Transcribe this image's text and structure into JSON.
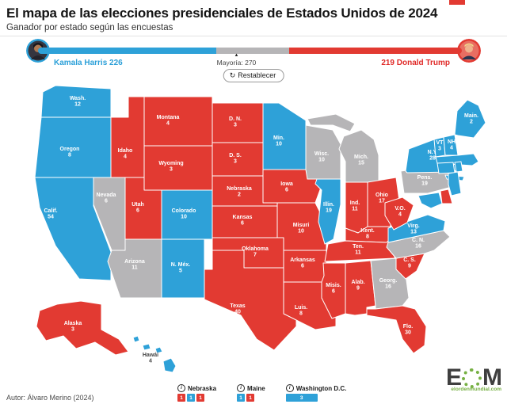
{
  "header": {
    "title": "El mapa de las elecciones presidenciales de Estados Unidos de 2024",
    "subtitle": "Ganador por estado según las encuestas"
  },
  "colors": {
    "dem": "#2ea1d8",
    "rep": "#e23a32",
    "tossup": "#b6b5b7",
    "dem_text": "#2a9fd8",
    "rep_text": "#e02a28",
    "dark_label": "#444444"
  },
  "tally": {
    "total": 538,
    "majority": 270,
    "harris": {
      "name": "Kamala Harris",
      "votes": 226,
      "label": "Kamala Harris 226"
    },
    "trump": {
      "name": "Donald Trump",
      "votes": 219,
      "label": "219 Donald Trump"
    },
    "majority_label": "Mayoría: 270",
    "reset_label": "Restablecer"
  },
  "map": {
    "states": [
      {
        "id": "wa",
        "label": "Wash.",
        "votes": "12",
        "status": "dem"
      },
      {
        "id": "or",
        "label": "Oregon",
        "votes": "8",
        "status": "dem"
      },
      {
        "id": "ca",
        "label": "Calif.",
        "votes": "54",
        "status": "dem"
      },
      {
        "id": "nv",
        "label": "Nevada",
        "votes": "6",
        "status": "tossup"
      },
      {
        "id": "id",
        "label": "Idaho",
        "votes": "4",
        "status": "rep"
      },
      {
        "id": "mt",
        "label": "Montana",
        "votes": "4",
        "status": "rep"
      },
      {
        "id": "wy",
        "label": "Wyoming",
        "votes": "3",
        "status": "rep"
      },
      {
        "id": "ut",
        "label": "Utah",
        "votes": "6",
        "status": "rep"
      },
      {
        "id": "co",
        "label": "Colorado",
        "votes": "10",
        "status": "dem"
      },
      {
        "id": "az",
        "label": "Arizona",
        "votes": "11",
        "status": "tossup"
      },
      {
        "id": "nm",
        "label": "N. Méx.",
        "votes": "5",
        "status": "dem"
      },
      {
        "id": "nd",
        "label": "D. N.",
        "votes": "3",
        "status": "rep"
      },
      {
        "id": "sd",
        "label": "D. S.",
        "votes": "3",
        "status": "rep"
      },
      {
        "id": "ne",
        "label": "Nebraska",
        "votes": "2",
        "status": "rep"
      },
      {
        "id": "ks",
        "label": "Kansas",
        "votes": "6",
        "status": "rep"
      },
      {
        "id": "ok",
        "label": "Oklahoma",
        "votes": "7",
        "status": "rep"
      },
      {
        "id": "tx",
        "label": "Texas",
        "votes": "40",
        "status": "rep"
      },
      {
        "id": "mn",
        "label": "Min.",
        "votes": "10",
        "status": "dem"
      },
      {
        "id": "ia",
        "label": "Iowa",
        "votes": "6",
        "status": "rep"
      },
      {
        "id": "mo",
        "label": "Misuri",
        "votes": "10",
        "status": "rep"
      },
      {
        "id": "ar",
        "label": "Arkansas",
        "votes": "6",
        "status": "rep"
      },
      {
        "id": "la",
        "label": "Luis.",
        "votes": "8",
        "status": "rep"
      },
      {
        "id": "wi",
        "label": "Wisc.",
        "votes": "10",
        "status": "tossup"
      },
      {
        "id": "il",
        "label": "Illin.",
        "votes": "19",
        "status": "dem"
      },
      {
        "id": "ms",
        "label": "Misis.",
        "votes": "6",
        "status": "rep"
      },
      {
        "id": "mi",
        "label": "Mich.",
        "votes": "15",
        "status": "tossup"
      },
      {
        "id": "in",
        "label": "Ind.",
        "votes": "11",
        "status": "rep"
      },
      {
        "id": "oh",
        "label": "Ohio",
        "votes": "17",
        "status": "rep"
      },
      {
        "id": "ky",
        "label": "Kent.",
        "votes": "8",
        "status": "rep"
      },
      {
        "id": "tn",
        "label": "Ten.",
        "votes": "11",
        "status": "rep"
      },
      {
        "id": "al",
        "label": "Alab.",
        "votes": "9",
        "status": "rep"
      },
      {
        "id": "ga",
        "label": "Georg.",
        "votes": "16",
        "status": "tossup"
      },
      {
        "id": "fl",
        "label": "Flo.",
        "votes": "30",
        "status": "rep"
      },
      {
        "id": "sc",
        "label": "C. S.",
        "votes": "9",
        "status": "rep"
      },
      {
        "id": "nc",
        "label": "C. N.",
        "votes": "16",
        "status": "tossup"
      },
      {
        "id": "va",
        "label": "Virg.",
        "votes": "13",
        "status": "dem"
      },
      {
        "id": "wv",
        "label": "V.O.",
        "votes": "4",
        "status": "rep"
      },
      {
        "id": "pa",
        "label": "Pens.",
        "votes": "19",
        "status": "tossup"
      },
      {
        "id": "ny",
        "label": "N.Y.",
        "votes": "28",
        "status": "dem"
      },
      {
        "id": "vt",
        "label": "VT",
        "votes": "3",
        "status": "dem"
      },
      {
        "id": "nh",
        "label": "NH",
        "votes": "4",
        "status": "dem"
      },
      {
        "id": "me",
        "label": "Main.",
        "votes": "2",
        "status": "dem"
      },
      {
        "id": "ak",
        "label": "Alaska",
        "votes": "3",
        "status": "rep"
      },
      {
        "id": "hi",
        "label": "Hawái",
        "votes": "4",
        "status": "dem"
      }
    ],
    "small_states": [
      {
        "id": "mi_up",
        "status": "tossup"
      },
      {
        "id": "ma",
        "status": "dem"
      },
      {
        "id": "ct",
        "status": "dem"
      },
      {
        "id": "ri",
        "status": "dem"
      },
      {
        "id": "li",
        "status": "dem"
      },
      {
        "id": "nj",
        "status": "dem"
      },
      {
        "id": "md",
        "status": "dem"
      },
      {
        "id": "de",
        "status": "rep"
      }
    ]
  },
  "legend": {
    "items": [
      {
        "name": "Nebraska",
        "boxes": [
          {
            "value": "1",
            "party": "rep"
          },
          {
            "value": "1",
            "party": "dem"
          },
          {
            "value": "1",
            "party": "rep"
          }
        ]
      },
      {
        "name": "Maine",
        "boxes": [
          {
            "value": "1",
            "party": "dem"
          },
          {
            "value": "1",
            "party": "rep"
          }
        ]
      },
      {
        "name": "Washington D.C.",
        "boxes": [
          {
            "value": "3",
            "party": "dem",
            "wide": true
          }
        ]
      }
    ]
  },
  "footer": {
    "author": "Autor: Álvaro Merino (2024)",
    "brand_letter_e": "E",
    "brand_letter_m": "M",
    "brand_domain": "elordenmundial.com"
  }
}
